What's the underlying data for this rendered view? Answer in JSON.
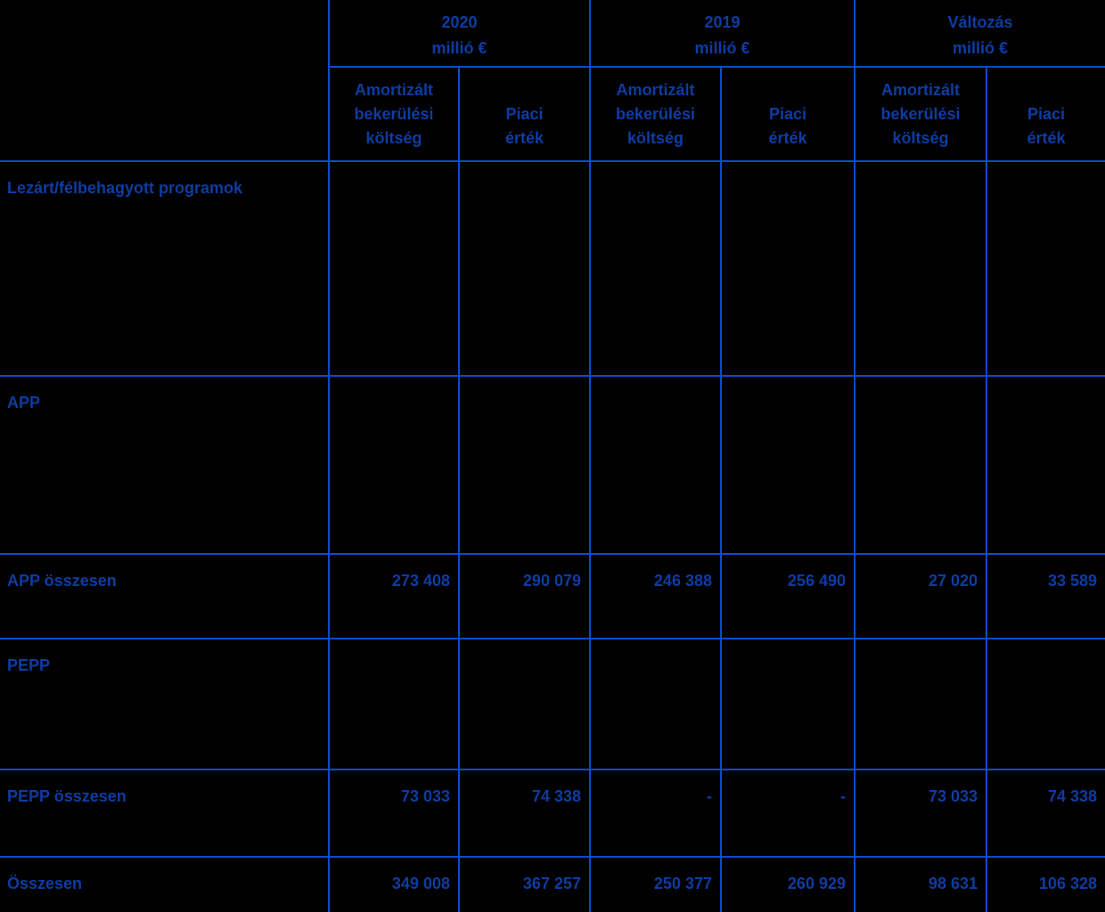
{
  "table": {
    "title_hint": "Ertekpapir-allomanyok programok szerint",
    "colors": {
      "background": "#000000",
      "text_blue": "#0D3CA2",
      "grid_blue": "#0B4CCB"
    },
    "col_groups": [
      {
        "title": "2020",
        "unit": "millió €"
      },
      {
        "title": "2019",
        "unit": "millió €"
      },
      {
        "title": "Változás",
        "unit": "millió €"
      }
    ],
    "sub_headers": [
      {
        "label": "Amortizált\nbekerülési\nköltség"
      },
      {
        "label": "Piaci\nérték"
      },
      {
        "label": "Amortizált\nbekerülési\nköltség"
      },
      {
        "label": "Piaci\nérték"
      },
      {
        "label": "Amortizált\nbekerülési\nköltség"
      },
      {
        "label": "Piaci\nérték"
      }
    ],
    "rows": [
      {
        "label": "Lezárt/félbehagyott programok",
        "values": [
          "",
          "",
          "",
          "",
          "",
          ""
        ]
      },
      {
        "label": "APP",
        "values": [
          "",
          "",
          "",
          "",
          "",
          ""
        ]
      },
      {
        "label": "APP összesen",
        "values": [
          "273 408",
          "290 079",
          "246 388",
          "256 490",
          "27 020",
          "33 589"
        ]
      },
      {
        "label": "PEPP",
        "values": [
          "",
          "",
          "",
          "",
          "",
          ""
        ]
      },
      {
        "label": "PEPP összesen",
        "values": [
          "73 033",
          "74 338",
          "-",
          "-",
          "73 033",
          "74 338"
        ]
      },
      {
        "label": "Összesen",
        "values": [
          "349 008",
          "367 257",
          "250 377",
          "260 929",
          "98 631",
          "106 328"
        ]
      }
    ]
  }
}
